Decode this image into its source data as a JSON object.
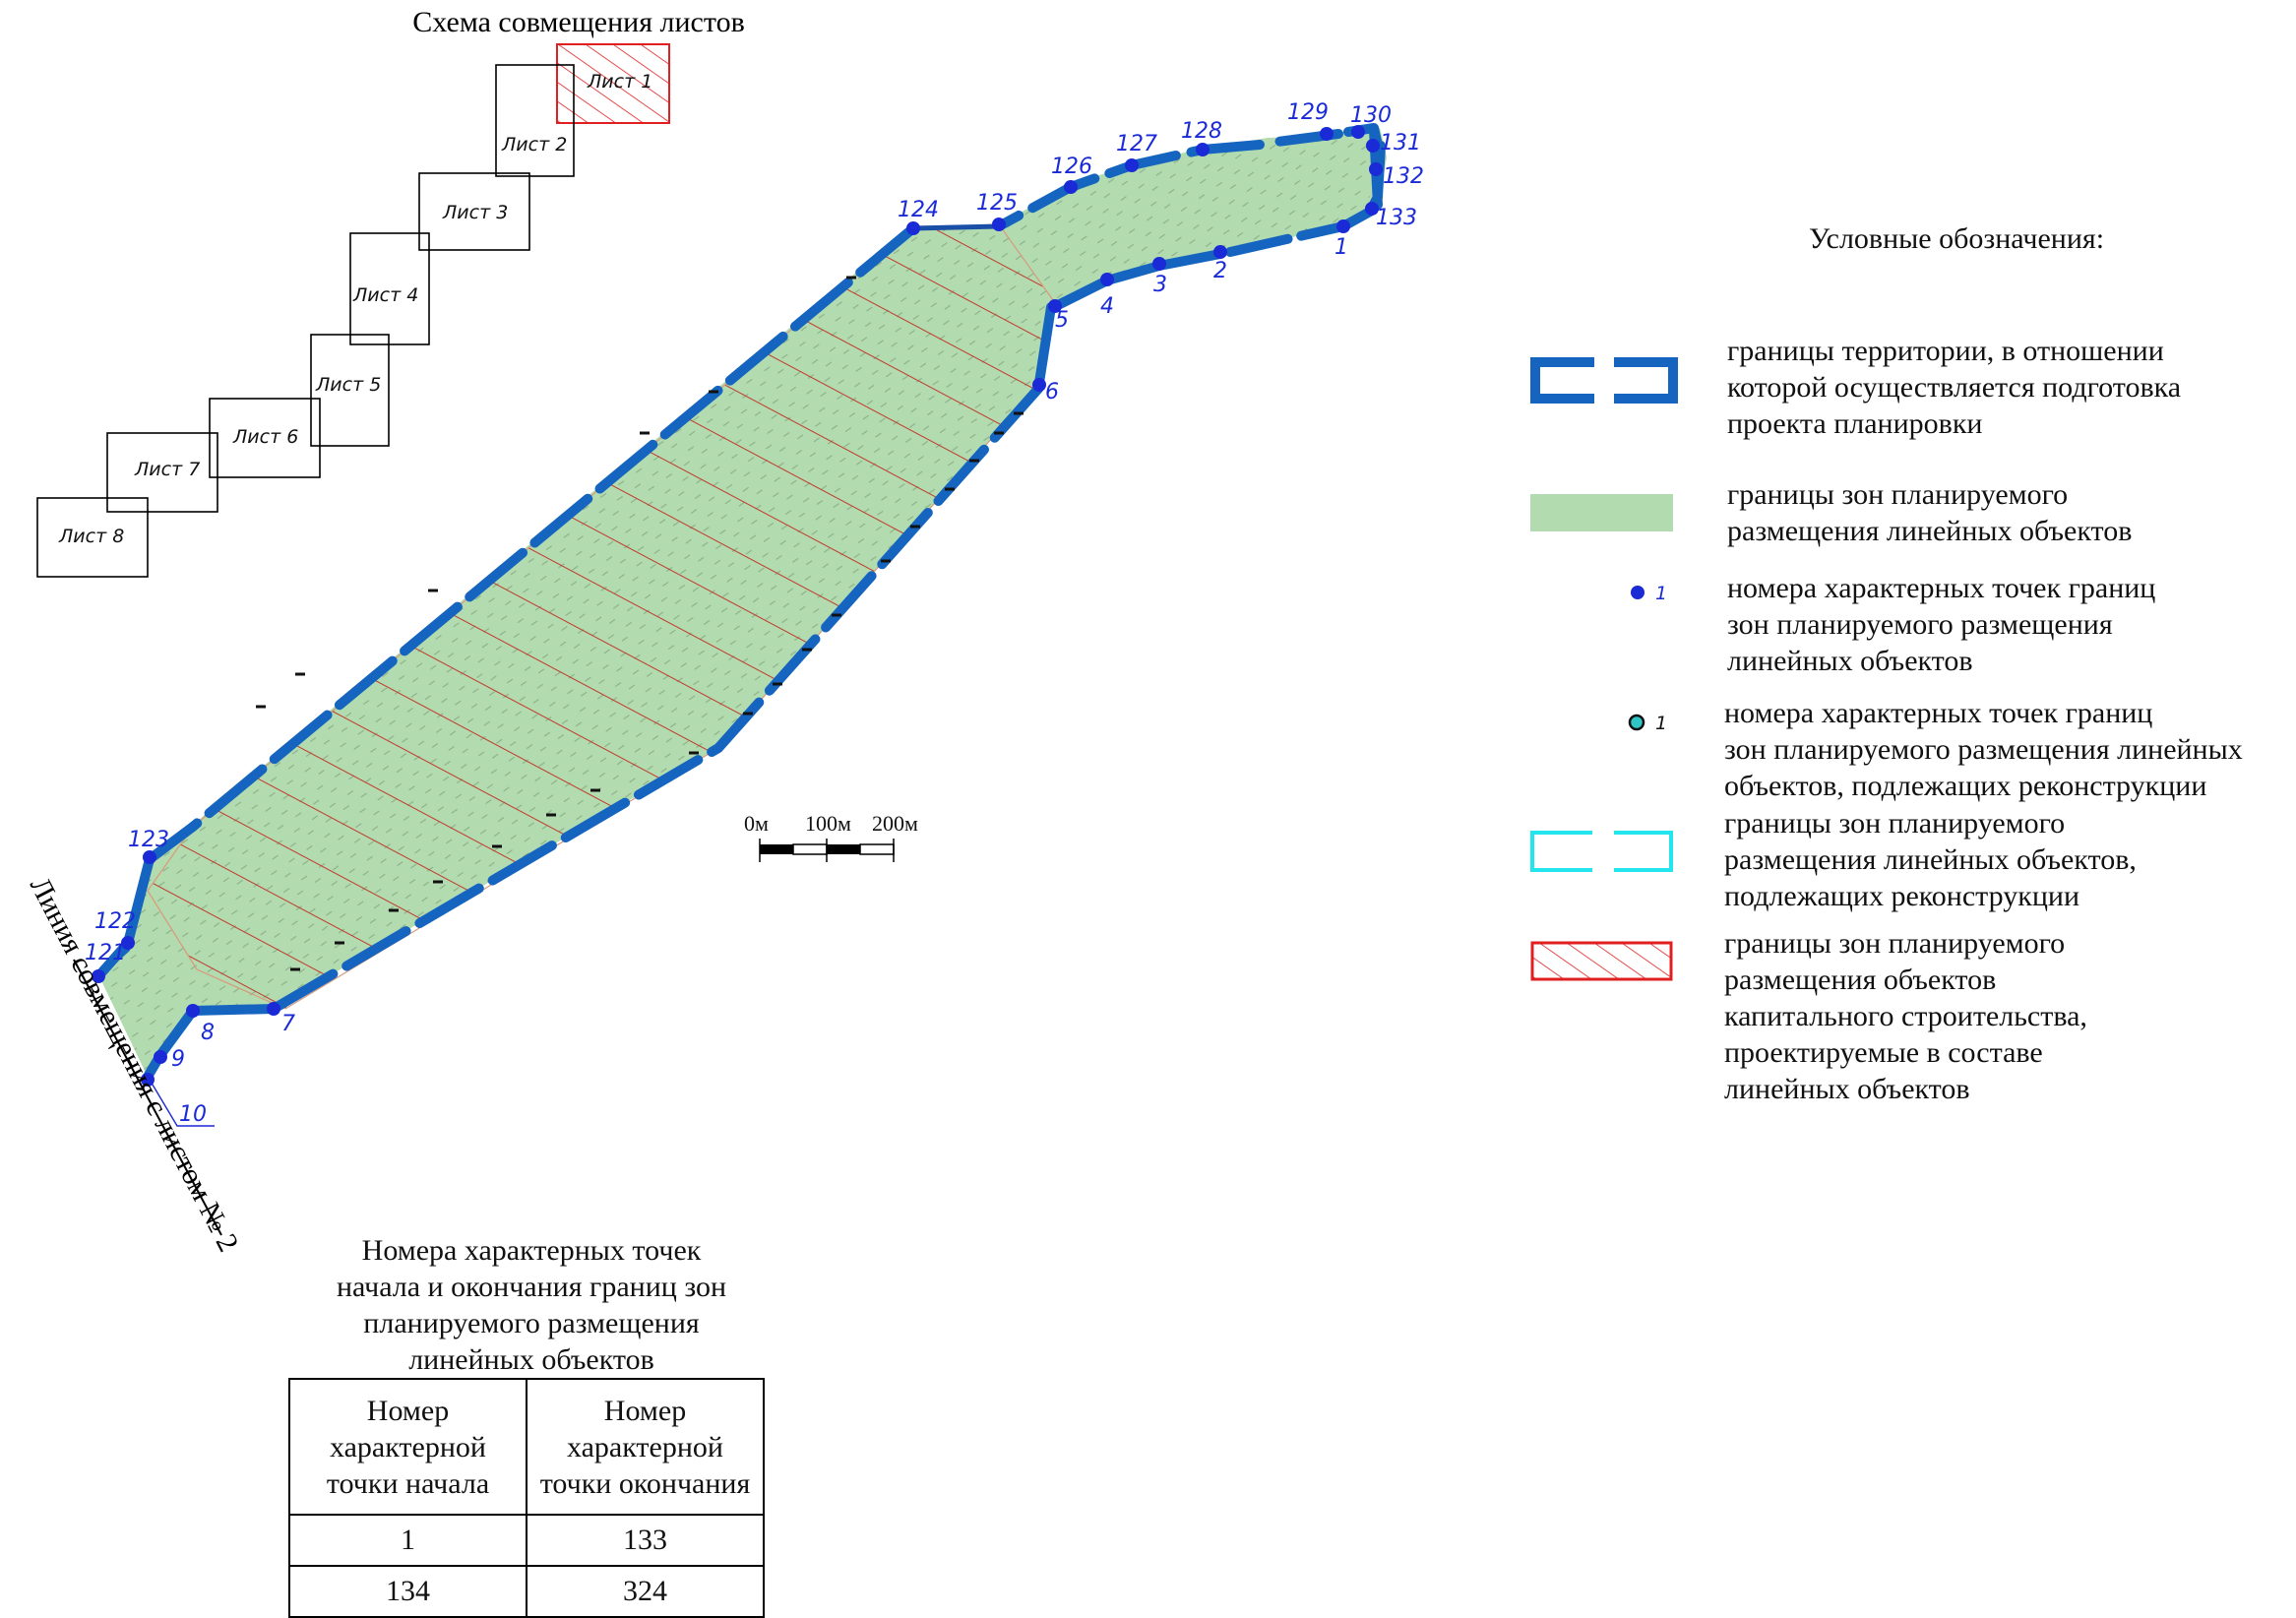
{
  "overview": {
    "title": "Схема совмещения листов",
    "sheets": [
      "Лист 1",
      "Лист 2",
      "Лист 3",
      "Лист 4",
      "Лист 5",
      "Лист 6",
      "Лист 7",
      "Лист 8"
    ],
    "active_sheet": "Лист 1"
  },
  "match_line": {
    "label": "Линия совмещения с листом № 2"
  },
  "scale_bar": {
    "labels": [
      "0м",
      "100м",
      "200м"
    ]
  },
  "point_labels": [
    "1",
    "2",
    "3",
    "4",
    "5",
    "6",
    "7",
    "8",
    "9",
    "10",
    "121",
    "122",
    "123",
    "124",
    "125",
    "126",
    "127",
    "128",
    "129",
    "130",
    "131",
    "132",
    "133"
  ],
  "legend": {
    "title": "Условные обозначения:",
    "items": [
      {
        "symbol": "territory-boundary",
        "color": "#1565c0",
        "text": "границы территории, в отношении\nкоторой осуществляется подготовка\nпроекта планировки"
      },
      {
        "symbol": "linear-zone",
        "color": "#b3dbb0",
        "text": "границы зон планируемого\nразмещения линейных объектов"
      },
      {
        "symbol": "point-blue",
        "color": "#1a2ad6",
        "sample": "1",
        "text": "номера характерных точек границ\nзон планируемого размещения\nлинейных объектов"
      },
      {
        "symbol": "point-cyan",
        "color": "#2fc5c5",
        "sample": "1",
        "text": "номера характерных точек границ\nзон планируемого размещения линейных\nобъектов, подлежащих реконструкции"
      },
      {
        "symbol": "reconstruction-boundary",
        "color": "#22e5ee",
        "text": "границы зон планируемого\nразмещения линейных объектов,\nподлежащих реконструкции"
      },
      {
        "symbol": "capital-construction",
        "color": "#e02020",
        "text": "границы зон планируемого\nразмещения объектов\nкапитального строительства,\nпроектируемые в составе\nлинейных объектов"
      }
    ]
  },
  "points_table": {
    "title": "Номера характерных точек\nначала и окончания границ зон\nпланируемого размещения\nлинейных объектов",
    "headers": [
      "Номер\nхарактерной\nточки начала",
      "Номер\nхарактерной\nточки окончания"
    ],
    "rows": [
      [
        "1",
        "133"
      ],
      [
        "134",
        "324"
      ]
    ]
  }
}
